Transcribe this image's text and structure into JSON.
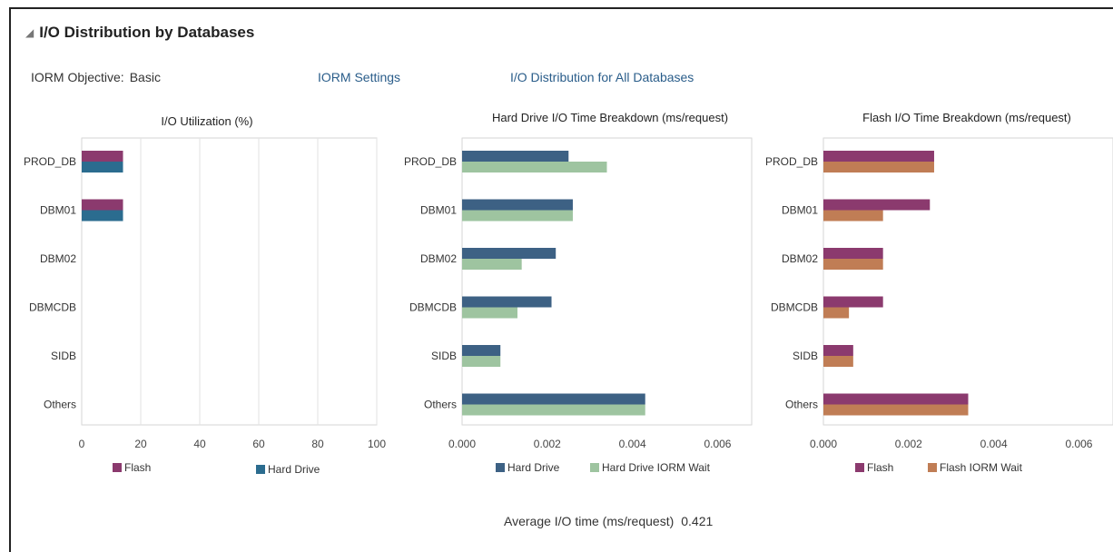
{
  "section": {
    "title": "I/O Distribution by Databases",
    "collapse_icon": "triangle-expanded-icon"
  },
  "objective": {
    "label": "IORM Objective:",
    "value": "Basic"
  },
  "links": {
    "iorm_settings": "IORM Settings",
    "all_databases": "I/O Distribution for All Databases"
  },
  "footer": {
    "label": "Average I/O time (ms/request)",
    "value": "0.421"
  },
  "chart_data": [
    {
      "type": "bar",
      "orientation": "horizontal",
      "title": "I/O Utilization (%)",
      "categories": [
        "PROD_DB",
        "DBM01",
        "DBM02",
        "DBMCDB",
        "SIDB",
        "Others"
      ],
      "series": [
        {
          "name": "Flash",
          "color": "#8b3a6e",
          "values": [
            14,
            14,
            0,
            0,
            0,
            0
          ]
        },
        {
          "name": "Hard Drive",
          "color": "#2b6c8f",
          "values": [
            14,
            14,
            0,
            0,
            0,
            0
          ]
        }
      ],
      "xlim": [
        0,
        100
      ],
      "xticks": [
        "0",
        "20",
        "40",
        "60",
        "80",
        "100"
      ],
      "grid": true,
      "legend": "bottom"
    },
    {
      "type": "bar",
      "orientation": "horizontal",
      "title": "Hard Drive I/O  Time Breakdown (ms/request)",
      "categories": [
        "PROD_DB",
        "DBM01",
        "DBM02",
        "DBMCDB",
        "SIDB",
        "Others"
      ],
      "series": [
        {
          "name": "Hard Drive",
          "color": "#3d6184",
          "values": [
            0.0025,
            0.0026,
            0.0022,
            0.0021,
            0.0009,
            0.0043
          ]
        },
        {
          "name": "Hard Drive IORM Wait",
          "color": "#9ec4a0",
          "values": [
            0.0034,
            0.0026,
            0.0014,
            0.0013,
            0.0009,
            0.0043
          ]
        }
      ],
      "xlim": [
        0,
        0.0068
      ],
      "xticks": [
        "0.000",
        "0.002",
        "0.004",
        "0.006"
      ],
      "grid": false,
      "legend": "bottom"
    },
    {
      "type": "bar",
      "orientation": "horizontal",
      "title": "Flash I/O Time Breakdown (ms/request)",
      "categories": [
        "PROD_DB",
        "DBM01",
        "DBM02",
        "DBMCDB",
        "SIDB",
        "Others"
      ],
      "series": [
        {
          "name": "Flash",
          "color": "#8b3a6e",
          "values": [
            0.0026,
            0.0025,
            0.0014,
            0.0014,
            0.0007,
            0.0034
          ]
        },
        {
          "name": "Flash IORM Wait",
          "color": "#c07d55",
          "values": [
            0.0026,
            0.0014,
            0.0014,
            0.0006,
            0.0007,
            0.0034
          ]
        }
      ],
      "xlim": [
        0,
        0.0068
      ],
      "xticks": [
        "0.000",
        "0.002",
        "0.004",
        "0.006"
      ],
      "grid": false,
      "legend": "bottom"
    }
  ]
}
